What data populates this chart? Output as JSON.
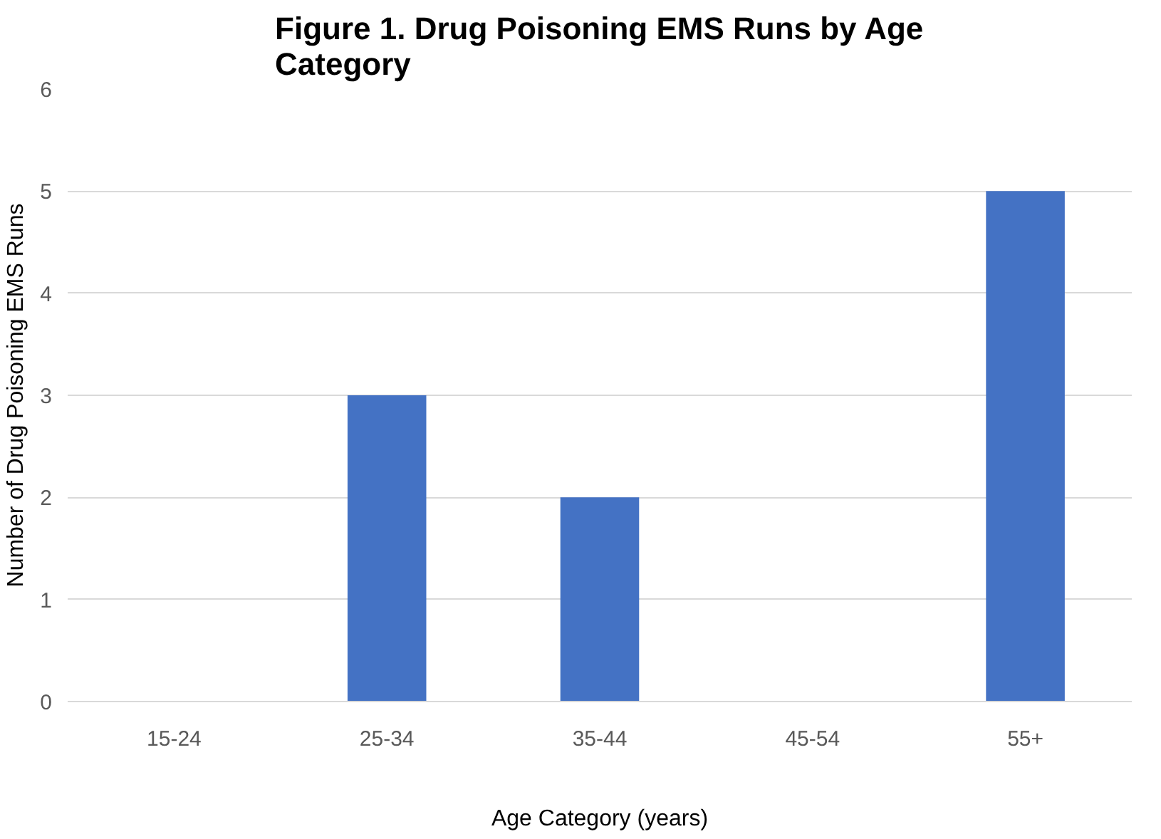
{
  "chart_data": {
    "type": "bar",
    "title": "Figure 1. Drug Poisoning EMS Runs by Age Category",
    "xlabel": "Age Category (years)",
    "ylabel": "Number of Drug Poisoning EMS Runs",
    "categories": [
      "15-24",
      "25-34",
      "35-44",
      "45-54",
      "55+"
    ],
    "values": [
      0,
      3,
      2,
      0,
      5
    ],
    "color": "#4472c4",
    "ylim": [
      0,
      6
    ],
    "yticks": [
      0,
      1,
      2,
      3,
      4,
      5,
      6
    ],
    "grid": "y"
  }
}
